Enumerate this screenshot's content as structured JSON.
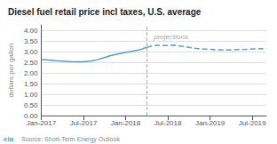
{
  "chart_data": {
    "type": "line",
    "title": "Diesel fuel retail price incl taxes, U.S. average",
    "ylabel": "dollars per gallon",
    "source": "Source: Short-Term Energy Outlook",
    "logo": "eia",
    "x": [
      0,
      1,
      2,
      3,
      4,
      5,
      6,
      7,
      8,
      9,
      10,
      11,
      12,
      13,
      14,
      15,
      16,
      17,
      18,
      19,
      20,
      21,
      22,
      23,
      24,
      25,
      26,
      27,
      28,
      29,
      30,
      31,
      32
    ],
    "series": [
      {
        "color": "#5a9fc0",
        "line_style": "solid",
        "values": [
          2.62,
          2.6,
          2.57,
          2.55,
          2.53,
          2.52,
          2.52,
          2.55,
          2.62,
          2.72,
          2.82,
          2.9,
          2.96,
          3.02,
          3.08,
          3.2,
          null,
          null,
          null,
          null,
          null,
          null,
          null,
          null,
          null,
          null,
          null,
          null,
          null,
          null,
          null,
          null,
          null
        ]
      },
      {
        "color": "#5a9fc0",
        "line_style": "dashed",
        "values": [
          null,
          null,
          null,
          null,
          null,
          null,
          null,
          null,
          null,
          null,
          null,
          null,
          null,
          null,
          null,
          3.2,
          3.28,
          3.3,
          3.28,
          3.3,
          3.25,
          3.2,
          3.15,
          3.12,
          3.1,
          3.08,
          3.07,
          3.08,
          3.09,
          3.1,
          3.12,
          3.13,
          3.14
        ]
      }
    ],
    "vlines": [
      {
        "x": 15,
        "line_style": "dashed"
      }
    ],
    "annotations": [
      {
        "text": "projections",
        "x": 16,
        "y": 3.85
      }
    ],
    "xlim": [
      0,
      32
    ],
    "xticks": [
      {
        "value": 0,
        "label": "Jan-2017"
      },
      {
        "value": 6,
        "label": "Jul-2017"
      },
      {
        "value": 12,
        "label": "Jan-2018"
      },
      {
        "value": 18,
        "label": "Jul-2018"
      },
      {
        "value": 24,
        "label": "Jan-2019"
      },
      {
        "value": 30,
        "label": "Jul-2019"
      }
    ],
    "ylim": [
      0,
      4.25
    ],
    "yticks": [
      {
        "value": 0,
        "label": "0.00"
      },
      {
        "value": 0.5,
        "label": "0.50"
      },
      {
        "value": 1,
        "label": "1.00"
      },
      {
        "value": 1.5,
        "label": "1.50"
      },
      {
        "value": 2,
        "label": "2.00"
      },
      {
        "value": 2.5,
        "label": "2.50"
      },
      {
        "value": 3,
        "label": "3.00"
      },
      {
        "value": 3.5,
        "label": "3.50"
      },
      {
        "value": 4,
        "label": "4.00"
      }
    ],
    "grid": true
  }
}
